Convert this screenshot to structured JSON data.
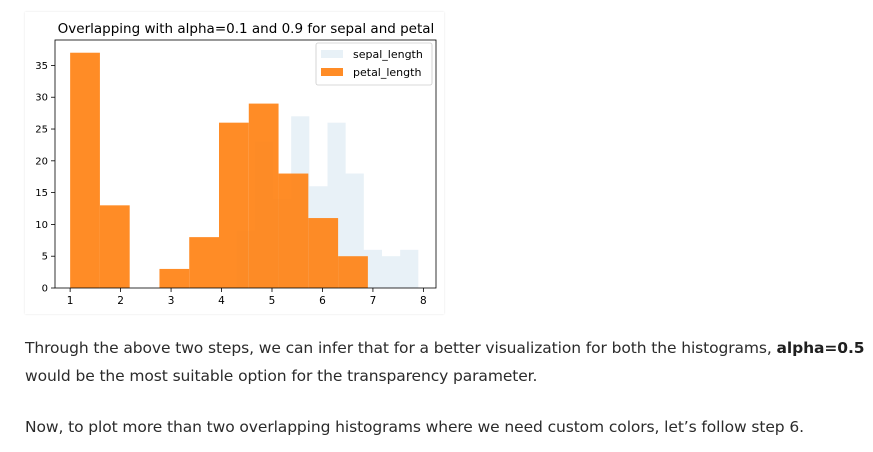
{
  "chart_data": {
    "type": "bar",
    "title": "Overlapping with alpha=0.1 and 0.9 for sepal and petal",
    "xlabel": "",
    "ylabel": "",
    "xlim": [
      0.7,
      8.25
    ],
    "ylim": [
      0,
      39
    ],
    "xticks": [
      1,
      2,
      3,
      4,
      5,
      6,
      7,
      8
    ],
    "yticks": [
      0,
      5,
      10,
      15,
      20,
      25,
      30,
      35
    ],
    "legend_position": "top-right",
    "series": [
      {
        "name": "sepal_length",
        "color": "#1f77b4",
        "alpha": 0.1,
        "bins": [
          {
            "x0": 4.3,
            "x1": 4.66,
            "count": 9
          },
          {
            "x0": 4.66,
            "x1": 5.02,
            "count": 23
          },
          {
            "x0": 5.02,
            "x1": 5.38,
            "count": 14
          },
          {
            "x0": 5.38,
            "x1": 5.74,
            "count": 27
          },
          {
            "x0": 5.74,
            "x1": 6.1,
            "count": 16
          },
          {
            "x0": 6.1,
            "x1": 6.46,
            "count": 26
          },
          {
            "x0": 6.46,
            "x1": 6.82,
            "count": 18
          },
          {
            "x0": 6.82,
            "x1": 7.18,
            "count": 6
          },
          {
            "x0": 7.18,
            "x1": 7.54,
            "count": 5
          },
          {
            "x0": 7.54,
            "x1": 7.9,
            "count": 6
          }
        ]
      },
      {
        "name": "petal_length",
        "color": "#ff7f0e",
        "alpha": 0.9,
        "bins": [
          {
            "x0": 1.0,
            "x1": 1.59,
            "count": 37
          },
          {
            "x0": 1.59,
            "x1": 2.18,
            "count": 13
          },
          {
            "x0": 2.18,
            "x1": 2.77,
            "count": 0
          },
          {
            "x0": 2.77,
            "x1": 3.36,
            "count": 3
          },
          {
            "x0": 3.36,
            "x1": 3.95,
            "count": 8
          },
          {
            "x0": 3.95,
            "x1": 4.54,
            "count": 26
          },
          {
            "x0": 4.54,
            "x1": 5.13,
            "count": 29
          },
          {
            "x0": 5.13,
            "x1": 5.72,
            "count": 18
          },
          {
            "x0": 5.72,
            "x1": 6.31,
            "count": 11
          },
          {
            "x0": 6.31,
            "x1": 6.9,
            "count": 5
          }
        ]
      }
    ]
  },
  "text": {
    "p1_before": "Through the above two steps, we can infer that for a better visualization for both the histograms, ",
    "p1_bold": "alpha=0.5",
    "p1_after": " would be the most suitable option for the transparency parameter.",
    "p2": "Now, to plot more than two overlapping histograms where we need custom colors, let’s follow step 6."
  }
}
